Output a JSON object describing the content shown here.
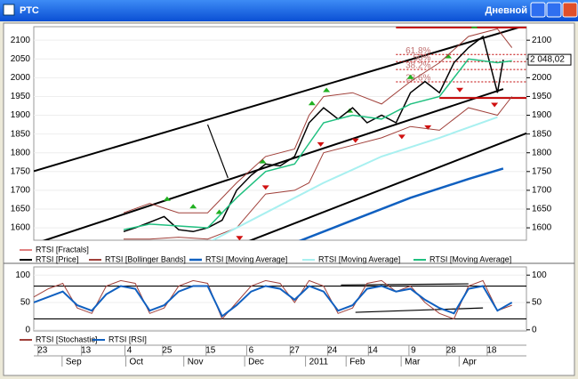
{
  "window": {
    "title": "РТС",
    "timeframe": "Дневной"
  },
  "chart_data": [
    {
      "type": "line",
      "ylim": [
        1567,
        2136
      ],
      "yticks": [
        1600,
        1650,
        1700,
        1750,
        1800,
        1850,
        1900,
        1950,
        2000,
        2050,
        2100
      ],
      "xlim": [
        0,
        170
      ],
      "last_price": {
        "value": 2048.02,
        "label": "2 048,02"
      },
      "fibonacci": [
        {
          "label": "100%",
          "value": 2134
        },
        {
          "label": "61.8%",
          "value": 2062
        },
        {
          "label": "50%",
          "value": 2043
        },
        {
          "label": "38.2%",
          "value": 2022
        },
        {
          "label": "23.6%",
          "value": 1989
        }
      ],
      "fib_base": 1946,
      "trendlines": [
        {
          "x": [
            0,
            170
          ],
          "values": [
            1751,
            2140
          ]
        },
        {
          "x": [
            0,
            162
          ],
          "values": [
            1557,
            1970
          ]
        },
        {
          "x": [
            71,
            170
          ],
          "values": [
            1555,
            1852
          ]
        },
        {
          "x": [
            60,
            67
          ],
          "values": [
            1875,
            1733
          ]
        }
      ],
      "series": [
        {
          "name": "RTSI [Fractals]",
          "color": "#c00000",
          "style": "fractal",
          "x": [
            46,
            55,
            64,
            79,
            96,
            101,
            109,
            130,
            143,
            152,
            71,
            80,
            99,
            111,
            127,
            136,
            147,
            159
          ],
          "values": [
            1660,
            1640,
            1625,
            1760,
            1915,
            1950,
            1895,
            1985,
            2040,
            2120,
            1590,
            1725,
            1840,
            1850,
            1860,
            1885,
            1985,
            1945
          ],
          "kinds": [
            "up",
            "up",
            "up",
            "up",
            "up",
            "up",
            "up",
            "up",
            "up",
            "up",
            "down",
            "down",
            "down",
            "down",
            "down",
            "down",
            "down",
            "down"
          ]
        },
        {
          "name": "RTSI [Price]",
          "color": "#000000",
          "width": 1.5,
          "x": [
            31,
            35,
            40,
            45,
            50,
            55,
            60,
            65,
            70,
            75,
            80,
            85,
            90,
            95,
            100,
            105,
            110,
            115,
            120,
            125,
            130,
            135,
            140,
            145,
            150,
            155,
            158,
            160,
            162
          ],
          "values": [
            1590,
            1600,
            1615,
            1630,
            1595,
            1590,
            1600,
            1620,
            1700,
            1740,
            1770,
            1765,
            1790,
            1880,
            1920,
            1890,
            1920,
            1880,
            1900,
            1880,
            1960,
            1990,
            1960,
            2040,
            2080,
            2110,
            2020,
            1960,
            2048
          ]
        },
        {
          "name": "RTSI [Bollinger Bands]",
          "color": "#a0403a",
          "width": 1,
          "x": [
            31,
            40,
            50,
            60,
            70,
            80,
            90,
            95,
            100,
            110,
            120,
            130,
            140,
            150,
            160,
            165
          ],
          "values": [
            1640,
            1665,
            1640,
            1640,
            1720,
            1790,
            1810,
            1900,
            1950,
            1960,
            1930,
            1990,
            2040,
            2110,
            2130,
            2080
          ]
        },
        {
          "color": "#a0403a",
          "width": 1,
          "x": [
            31,
            40,
            50,
            60,
            70,
            80,
            90,
            95,
            100,
            110,
            120,
            130,
            140,
            150,
            160,
            165
          ],
          "values": [
            1570,
            1570,
            1575,
            1570,
            1600,
            1690,
            1700,
            1720,
            1800,
            1820,
            1840,
            1870,
            1860,
            1920,
            1900,
            1950
          ]
        },
        {
          "name": "RTSI [Moving Average]",
          "color": "#1060c0",
          "width": 2.5,
          "x": [
            90,
            110,
            130,
            150,
            162
          ],
          "values": [
            1560,
            1620,
            1680,
            1730,
            1758
          ]
        },
        {
          "name": "RTSI [Moving Average]",
          "color": "#a8f0f0",
          "width": 2,
          "x": [
            60,
            80,
            100,
            120,
            140,
            160
          ],
          "values": [
            1560,
            1640,
            1720,
            1790,
            1840,
            1895
          ]
        },
        {
          "name": "RTSI [Moving Average]",
          "color": "#20c080",
          "width": 1.5,
          "x": [
            31,
            40,
            50,
            60,
            70,
            80,
            90,
            100,
            110,
            120,
            130,
            140,
            150,
            160,
            165
          ],
          "values": [
            1595,
            1610,
            1605,
            1600,
            1680,
            1750,
            1770,
            1880,
            1900,
            1890,
            1930,
            1950,
            2050,
            2040,
            2045
          ]
        }
      ]
    },
    {
      "type": "line",
      "ylim": [
        -2,
        115
      ],
      "yticks": [
        0,
        50,
        100
      ],
      "xlim": [
        0,
        170
      ],
      "levels": [
        80,
        20
      ],
      "trendlines": [
        {
          "x": [
            106,
            150
          ],
          "values": [
            82,
            84
          ]
        },
        {
          "x": [
            111,
            155
          ],
          "values": [
            32,
            40
          ]
        }
      ],
      "series": [
        {
          "name": "RTSI [Stochastic]",
          "color": "#a0403a",
          "width": 1,
          "x": [
            0,
            5,
            10,
            15,
            20,
            25,
            30,
            35,
            40,
            45,
            50,
            55,
            60,
            65,
            70,
            75,
            80,
            85,
            90,
            95,
            100,
            105,
            110,
            115,
            120,
            125,
            130,
            135,
            140,
            145,
            150,
            155,
            160,
            165
          ],
          "values": [
            60,
            75,
            85,
            40,
            30,
            80,
            90,
            85,
            30,
            40,
            80,
            90,
            85,
            20,
            50,
            80,
            90,
            85,
            50,
            90,
            80,
            30,
            40,
            85,
            90,
            70,
            80,
            50,
            30,
            20,
            80,
            90,
            35,
            45
          ]
        },
        {
          "name": "RTSI [RSI]",
          "color": "#1060c0",
          "width": 2,
          "x": [
            0,
            5,
            10,
            15,
            20,
            25,
            30,
            35,
            40,
            45,
            50,
            55,
            60,
            65,
            70,
            75,
            80,
            85,
            90,
            95,
            100,
            105,
            110,
            115,
            120,
            125,
            130,
            135,
            140,
            145,
            150,
            155,
            160,
            165
          ],
          "values": [
            50,
            60,
            70,
            45,
            35,
            65,
            80,
            75,
            35,
            45,
            70,
            80,
            80,
            25,
            45,
            70,
            80,
            75,
            55,
            80,
            70,
            35,
            45,
            75,
            80,
            70,
            75,
            55,
            40,
            30,
            75,
            80,
            35,
            50
          ]
        }
      ],
      "xticks": [
        {
          "value": 3,
          "label": "23"
        },
        {
          "value": 18,
          "label": "13"
        },
        {
          "value": 33,
          "label": "4"
        },
        {
          "value": 46,
          "label": "25"
        },
        {
          "value": 61,
          "label": "15"
        },
        {
          "value": 75,
          "label": "6"
        },
        {
          "value": 90,
          "label": "27"
        },
        {
          "value": 103,
          "label": "24"
        },
        {
          "value": 117,
          "label": "14"
        },
        {
          "value": 131,
          "label": "9"
        },
        {
          "value": 144,
          "label": "28"
        },
        {
          "value": 158,
          "label": "18"
        }
      ],
      "month_ticks": [
        {
          "value": 11,
          "label": "Sep"
        },
        {
          "value": 33,
          "label": "Oct"
        },
        {
          "value": 53,
          "label": "Nov"
        },
        {
          "value": 74,
          "label": "Dec"
        },
        {
          "value": 95,
          "label": "2011"
        },
        {
          "value": 109,
          "label": "Feb"
        },
        {
          "value": 128,
          "label": "Mar"
        },
        {
          "value": 148,
          "label": "Apr"
        }
      ]
    }
  ]
}
